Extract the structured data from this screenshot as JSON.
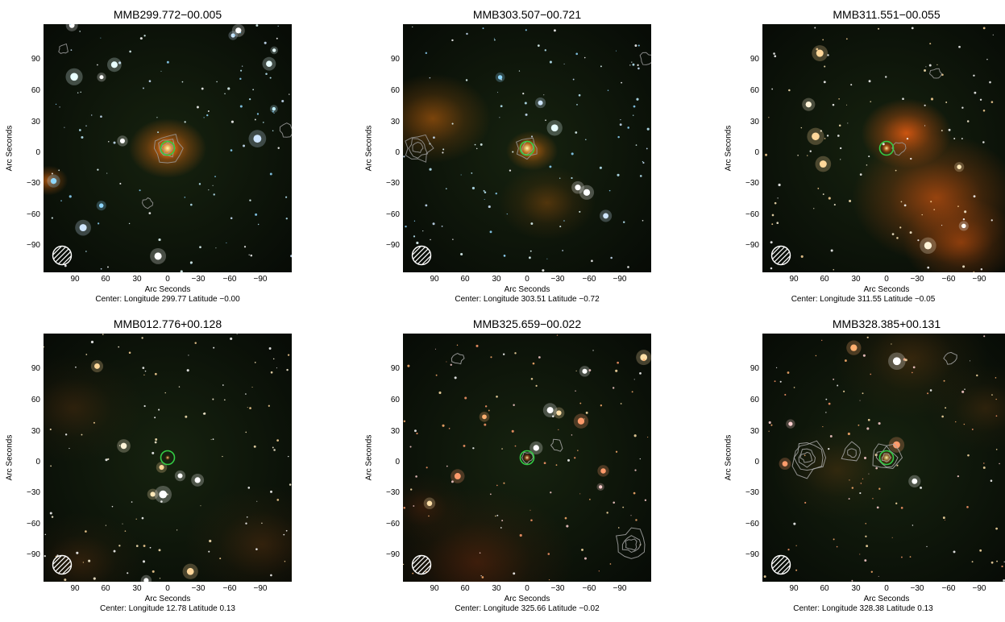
{
  "axis": {
    "y_label": "Arc Seconds",
    "x_label": "Arc Seconds",
    "y_ticks": [
      "90",
      "60",
      "30",
      "0",
      "−30",
      "−60",
      "−90"
    ],
    "x_ticks": [
      "90",
      "60",
      "30",
      "0",
      "−30",
      "−60",
      "−90"
    ]
  },
  "panels": [
    {
      "title": "MMB299.772−00.005",
      "caption": "Center:  Longitude 299.77 Latitude −0.00",
      "nebula": "#e06a10",
      "nebula_strength": 0.9,
      "contour_color": "#9a9a9a",
      "star_tint": "cyan"
    },
    {
      "title": "MMB303.507−00.721",
      "caption": "Center:  Longitude 303.51 Latitude −0.72",
      "nebula": "#e0700e",
      "nebula_strength": 0.7,
      "contour_color": "#9a9a9a",
      "star_tint": "cyan"
    },
    {
      "title": "MMB311.551−00.055",
      "caption": "Center:  Longitude 311.55 Latitude −0.05",
      "nebula": "#e05a10",
      "nebula_strength": 1.0,
      "contour_color": "#9a9a9a",
      "star_tint": "white"
    },
    {
      "title": "MMB012.776+00.128",
      "caption": "Center:  Longitude 12.78 Latitude 0.13",
      "nebula": "#b8581a",
      "nebula_strength": 0.5,
      "contour_color": "#9a9a9a",
      "star_tint": "white"
    },
    {
      "title": "MMB325.659−00.022",
      "caption": "Center:  Longitude 325.66 Latitude −0.02",
      "nebula": "#c03a10",
      "nebula_strength": 0.5,
      "contour_color": "#a8a8a8",
      "star_tint": "warm"
    },
    {
      "title": "MMB328.385+00.131",
      "caption": "Center:  Longitude 328.38 Latitude 0.13",
      "nebula": "#b86018",
      "nebula_strength": 0.6,
      "contour_color": "#a8a8a8",
      "star_tint": "warm"
    }
  ],
  "colors": {
    "marker_circle": "#33cc44",
    "beam_ellipse": "#ffffff"
  }
}
